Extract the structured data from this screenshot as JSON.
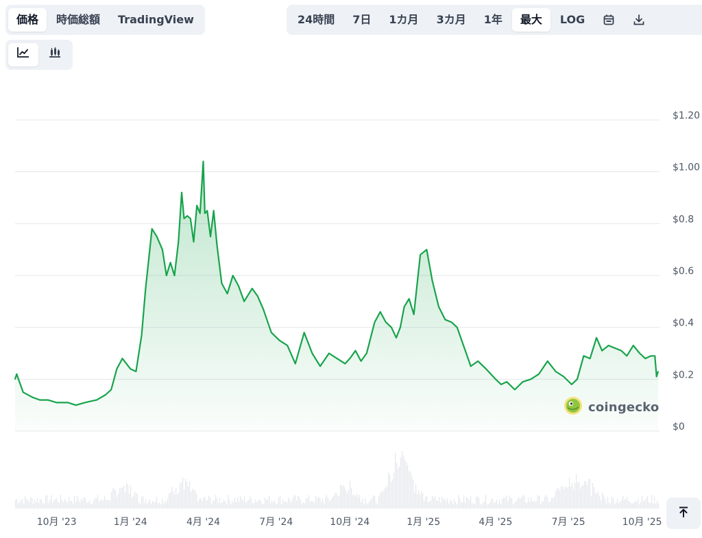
{
  "tabs_left": [
    {
      "label": "価格",
      "active": true
    },
    {
      "label": "時価総額",
      "active": false
    },
    {
      "label": "TradingView",
      "active": false
    }
  ],
  "tabs_right": [
    {
      "label": "24時間",
      "active": false
    },
    {
      "label": "7日",
      "active": false
    },
    {
      "label": "1カ月",
      "active": false
    },
    {
      "label": "3カ月",
      "active": false
    },
    {
      "label": "1年",
      "active": false
    },
    {
      "label": "最大",
      "active": true
    },
    {
      "label": "LOG",
      "active": false
    }
  ],
  "toolbar_icons": [
    "calendar-icon",
    "download-icon"
  ],
  "chart_mode": [
    {
      "icon": "line-chart-icon",
      "active": true
    },
    {
      "icon": "candlestick-icon",
      "active": false
    }
  ],
  "watermark": {
    "text": "coingecko"
  },
  "colors": {
    "line": "#16a34a",
    "area_top": "#16a34a",
    "volume": "#e5e7eb",
    "grid": "#e5e7eb",
    "axis_text": "#4b5563"
  },
  "chart_data": {
    "type": "area",
    "title": "",
    "xlabel": "",
    "ylabel": "",
    "ylim": [
      0,
      1.2
    ],
    "y_ticks": [
      "$0",
      "$0.2",
      "$0.4",
      "$0.6",
      "$0.8",
      "$1.00",
      "$1.20"
    ],
    "x_ticks": [
      "10月 '23",
      "1月 '24",
      "4月 '24",
      "7月 '24",
      "10月 '24",
      "1月 '25",
      "4月 '25",
      "7月 '25",
      "10月 '25"
    ],
    "x_tick_dates": [
      "2023-10-01",
      "2024-01-01",
      "2024-04-01",
      "2024-07-01",
      "2024-10-01",
      "2025-01-01",
      "2025-04-01",
      "2025-07-01",
      "2025-10-01"
    ],
    "x_range": [
      "2023-08-10",
      "2025-10-21"
    ],
    "grid": true,
    "series": [
      {
        "x": [
          "2023-08-10",
          "2023-08-12",
          "2023-08-20",
          "2023-09-01",
          "2023-09-10",
          "2023-09-20",
          "2023-10-01",
          "2023-10-15",
          "2023-10-25",
          "2023-11-05",
          "2023-11-20",
          "2023-12-01",
          "2023-12-08",
          "2023-12-15",
          "2023-12-22",
          "2024-01-01",
          "2024-01-08",
          "2024-01-15",
          "2024-01-20",
          "2024-01-28",
          "2024-02-03",
          "2024-02-10",
          "2024-02-15",
          "2024-02-20",
          "2024-02-25",
          "2024-03-01",
          "2024-03-05",
          "2024-03-08",
          "2024-03-12",
          "2024-03-16",
          "2024-03-20",
          "2024-03-24",
          "2024-03-28",
          "2024-04-01",
          "2024-04-03",
          "2024-04-06",
          "2024-04-10",
          "2024-04-14",
          "2024-04-18",
          "2024-04-24",
          "2024-05-01",
          "2024-05-08",
          "2024-05-15",
          "2024-05-22",
          "2024-06-01",
          "2024-06-08",
          "2024-06-15",
          "2024-06-25",
          "2024-07-05",
          "2024-07-15",
          "2024-07-25",
          "2024-08-05",
          "2024-08-15",
          "2024-08-25",
          "2024-09-05",
          "2024-09-15",
          "2024-09-25",
          "2024-10-01",
          "2024-10-08",
          "2024-10-15",
          "2024-10-22",
          "2024-11-01",
          "2024-11-08",
          "2024-11-15",
          "2024-11-22",
          "2024-11-28",
          "2024-12-03",
          "2024-12-08",
          "2024-12-14",
          "2024-12-20",
          "2024-12-28",
          "2025-01-05",
          "2025-01-12",
          "2025-01-20",
          "2025-01-28",
          "2025-02-05",
          "2025-02-12",
          "2025-02-20",
          "2025-03-01",
          "2025-03-10",
          "2025-03-20",
          "2025-04-01",
          "2025-04-08",
          "2025-04-15",
          "2025-04-25",
          "2025-05-05",
          "2025-05-15",
          "2025-05-25",
          "2025-06-05",
          "2025-06-15",
          "2025-06-25",
          "2025-07-05",
          "2025-07-12",
          "2025-07-20",
          "2025-07-28",
          "2025-08-05",
          "2025-08-12",
          "2025-08-20",
          "2025-08-28",
          "2025-09-05",
          "2025-09-12",
          "2025-09-20",
          "2025-09-28",
          "2025-10-05",
          "2025-10-12",
          "2025-10-17",
          "2025-10-19",
          "2025-10-21"
        ],
        "y": [
          0.2,
          0.22,
          0.15,
          0.13,
          0.12,
          0.12,
          0.11,
          0.11,
          0.1,
          0.11,
          0.12,
          0.14,
          0.16,
          0.24,
          0.28,
          0.24,
          0.23,
          0.37,
          0.55,
          0.78,
          0.75,
          0.7,
          0.6,
          0.65,
          0.6,
          0.73,
          0.92,
          0.82,
          0.83,
          0.82,
          0.73,
          0.87,
          0.84,
          1.04,
          0.84,
          0.85,
          0.75,
          0.85,
          0.72,
          0.57,
          0.53,
          0.6,
          0.56,
          0.5,
          0.55,
          0.52,
          0.47,
          0.38,
          0.35,
          0.33,
          0.26,
          0.38,
          0.3,
          0.25,
          0.3,
          0.28,
          0.26,
          0.28,
          0.31,
          0.27,
          0.3,
          0.42,
          0.46,
          0.42,
          0.4,
          0.36,
          0.4,
          0.48,
          0.51,
          0.45,
          0.68,
          0.7,
          0.58,
          0.48,
          0.43,
          0.42,
          0.4,
          0.33,
          0.25,
          0.27,
          0.24,
          0.2,
          0.18,
          0.19,
          0.16,
          0.19,
          0.2,
          0.22,
          0.27,
          0.23,
          0.21,
          0.18,
          0.2,
          0.29,
          0.28,
          0.36,
          0.31,
          0.33,
          0.32,
          0.31,
          0.29,
          0.33,
          0.3,
          0.28,
          0.29,
          0.29,
          0.21,
          0.23
        ]
      }
    ]
  }
}
